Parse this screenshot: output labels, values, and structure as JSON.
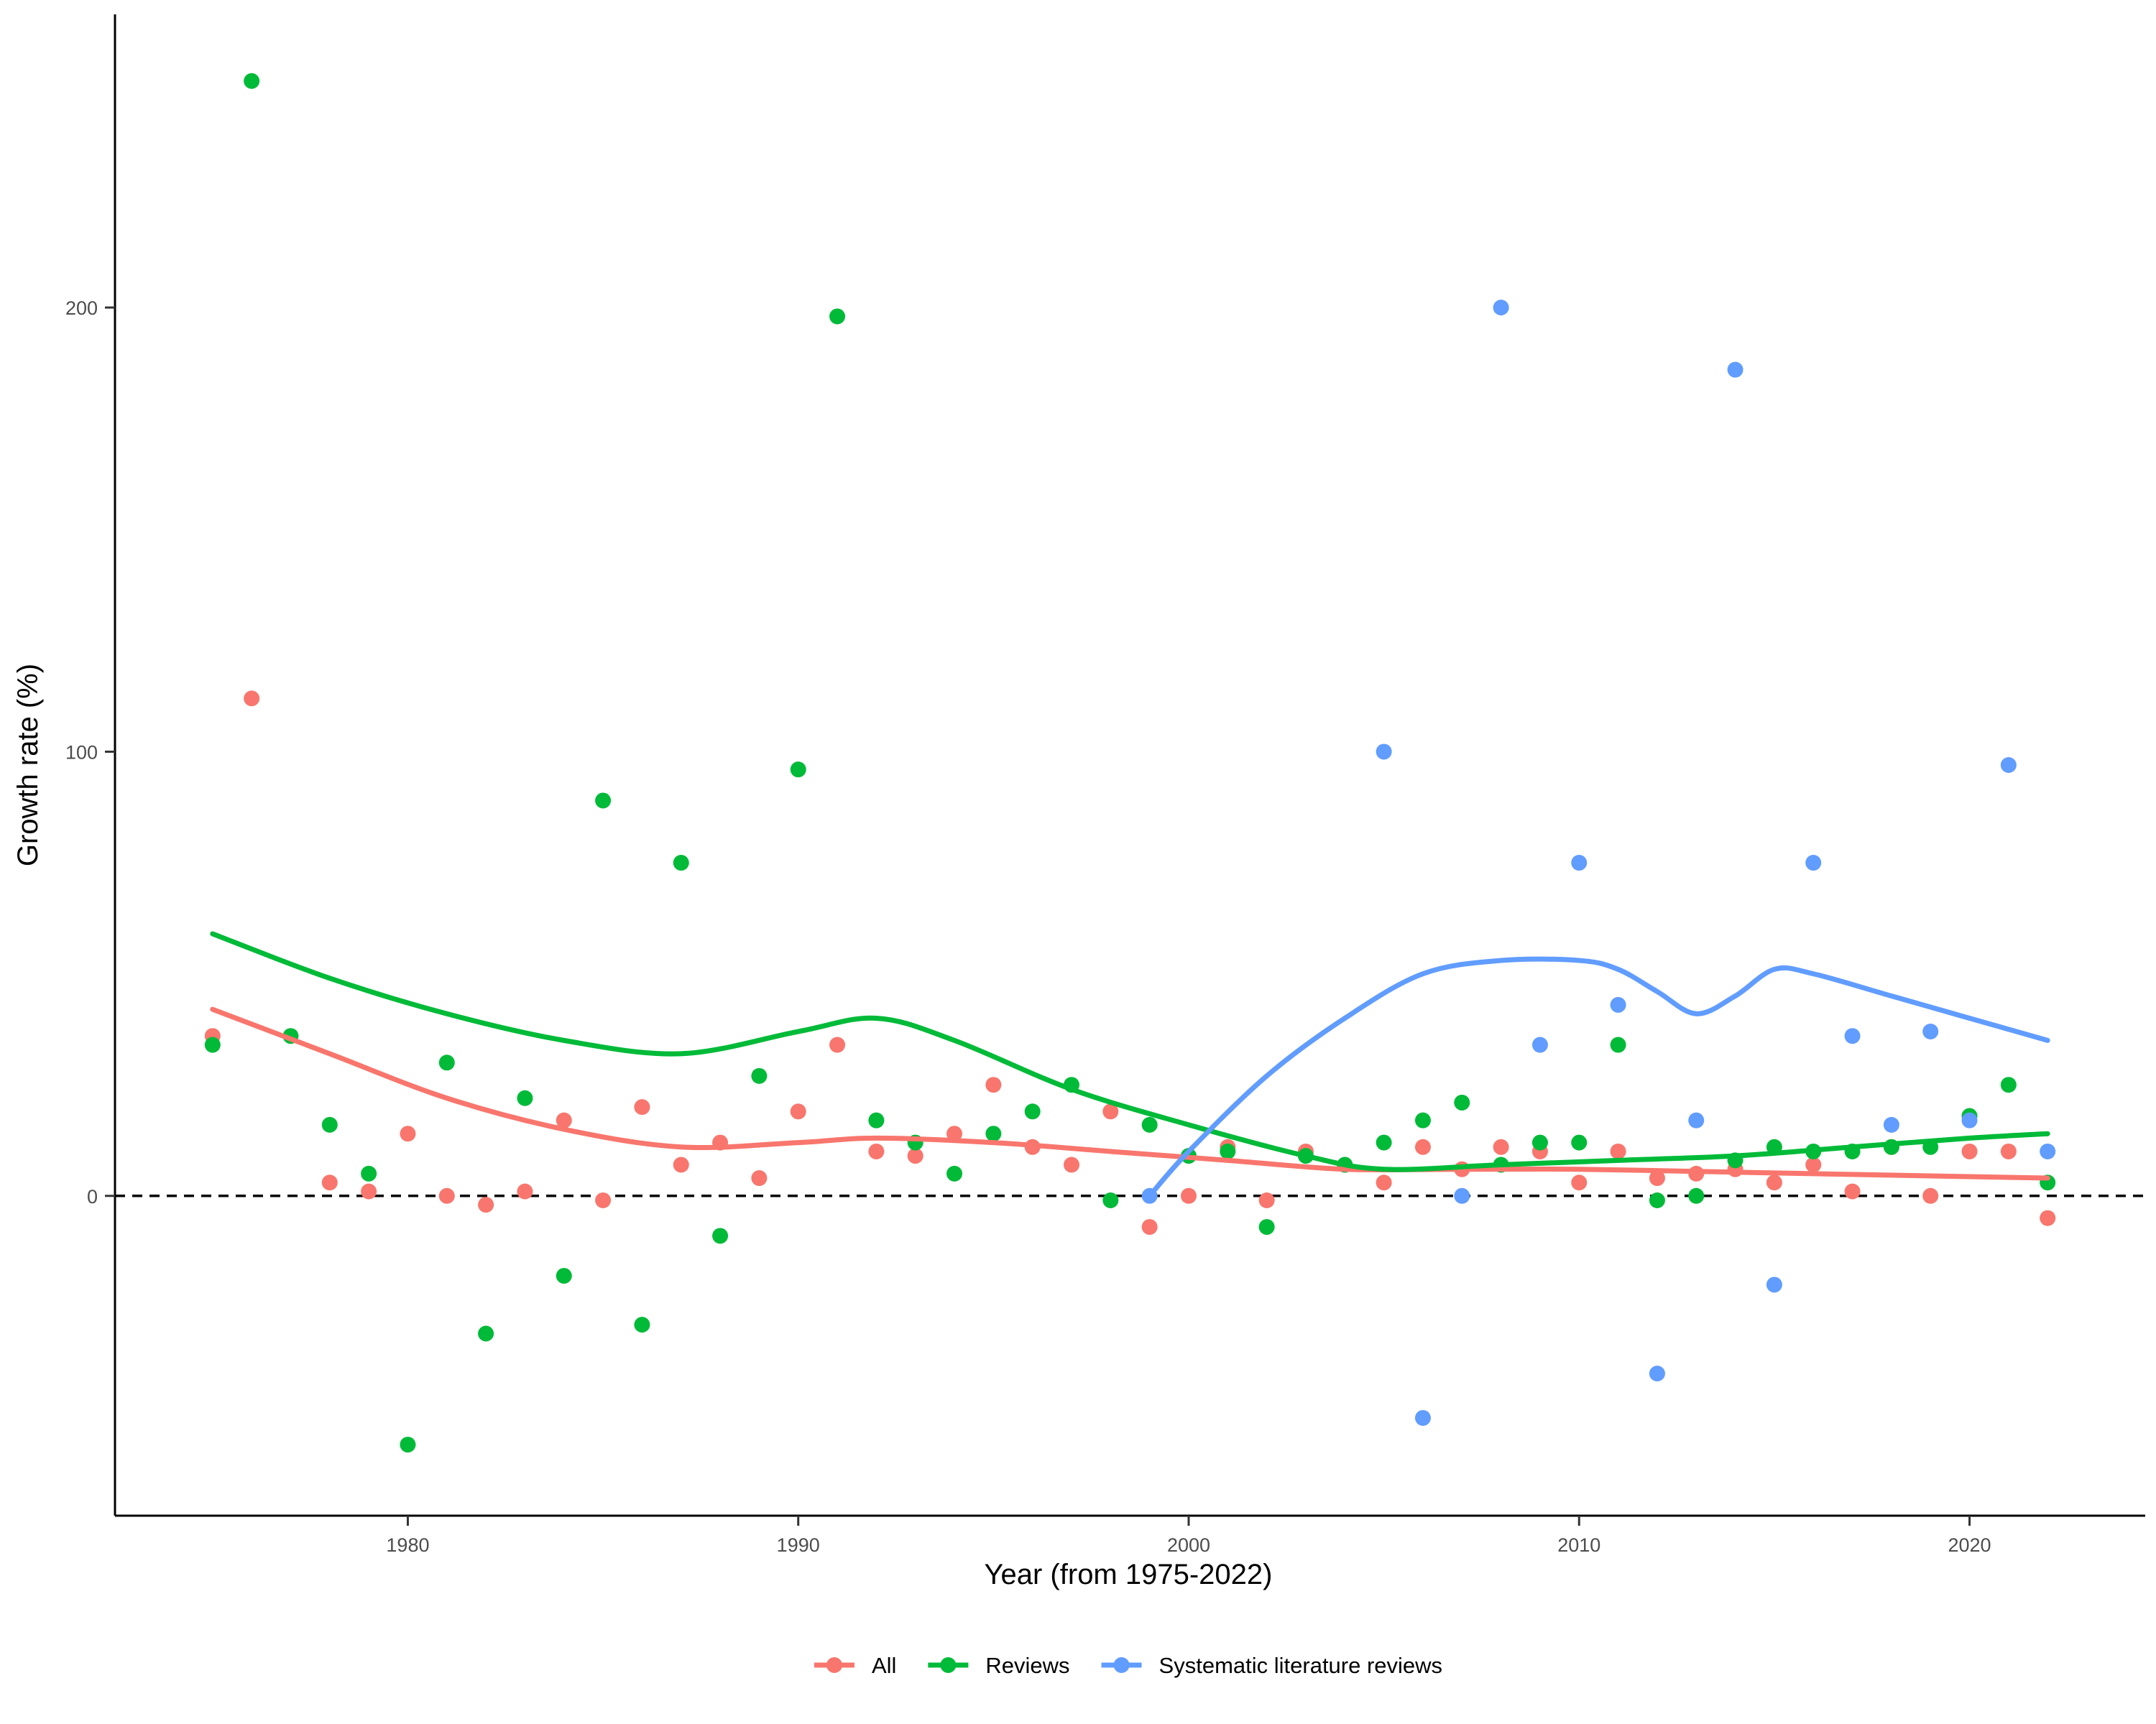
{
  "chart_data": {
    "type": "scatter",
    "title": "",
    "xlabel": "Year (from 1975-2022)",
    "ylabel": "Growth rate (%)",
    "xlim": [
      1972.5,
      2024.5
    ],
    "ylim": [
      -72,
      266
    ],
    "x_ticks": [
      1980,
      1990,
      2000,
      2010,
      2020
    ],
    "y_ticks": [
      0,
      100,
      200
    ],
    "reference_line": {
      "y": 0,
      "style": "dashed"
    },
    "grid": false,
    "legend_position": "bottom",
    "series": [
      {
        "name": "All",
        "color": "#F8766D",
        "points": [
          [
            1975,
            36
          ],
          [
            1976,
            112
          ],
          [
            1978,
            3
          ],
          [
            1979,
            1
          ],
          [
            1980,
            14
          ],
          [
            1981,
            0
          ],
          [
            1982,
            -2
          ],
          [
            1983,
            1
          ],
          [
            1984,
            17
          ],
          [
            1985,
            -1
          ],
          [
            1986,
            20
          ],
          [
            1987,
            7
          ],
          [
            1988,
            12
          ],
          [
            1989,
            4
          ],
          [
            1990,
            19
          ],
          [
            1991,
            34
          ],
          [
            1992,
            10
          ],
          [
            1993,
            9
          ],
          [
            1994,
            14
          ],
          [
            1995,
            25
          ],
          [
            1996,
            11
          ],
          [
            1997,
            7
          ],
          [
            1998,
            19
          ],
          [
            1999,
            -7
          ],
          [
            2000,
            0
          ],
          [
            2001,
            11
          ],
          [
            2002,
            -1
          ],
          [
            2003,
            10
          ],
          [
            2004,
            7
          ],
          [
            2005,
            3
          ],
          [
            2006,
            11
          ],
          [
            2007,
            6
          ],
          [
            2008,
            11
          ],
          [
            2009,
            10
          ],
          [
            2010,
            3
          ],
          [
            2011,
            10
          ],
          [
            2012,
            4
          ],
          [
            2013,
            5
          ],
          [
            2014,
            6
          ],
          [
            2015,
            3
          ],
          [
            2016,
            7
          ],
          [
            2017,
            1
          ],
          [
            2018,
            11
          ],
          [
            2019,
            0
          ],
          [
            2020,
            10
          ],
          [
            2021,
            10
          ],
          [
            2022,
            -5
          ]
        ],
        "trend": [
          [
            1975,
            42
          ],
          [
            1978,
            32
          ],
          [
            1981,
            22
          ],
          [
            1984,
            15
          ],
          [
            1987,
            11
          ],
          [
            1990,
            12
          ],
          [
            1992,
            13
          ],
          [
            1995,
            12
          ],
          [
            1998,
            10
          ],
          [
            2001,
            8
          ],
          [
            2004,
            6
          ],
          [
            2007,
            6
          ],
          [
            2010,
            6
          ],
          [
            2013,
            5.5
          ],
          [
            2016,
            5
          ],
          [
            2019,
            4.5
          ],
          [
            2022,
            4
          ]
        ]
      },
      {
        "name": "Reviews",
        "color": "#00BA38",
        "points": [
          [
            1975,
            34
          ],
          [
            1976,
            251
          ],
          [
            1977,
            36
          ],
          [
            1978,
            16
          ],
          [
            1979,
            5
          ],
          [
            1980,
            -56
          ],
          [
            1981,
            30
          ],
          [
            1982,
            -31
          ],
          [
            1983,
            22
          ],
          [
            1984,
            -18
          ],
          [
            1985,
            89
          ],
          [
            1986,
            -29
          ],
          [
            1987,
            75
          ],
          [
            1988,
            -9
          ],
          [
            1989,
            27
          ],
          [
            1990,
            96
          ],
          [
            1991,
            198
          ],
          [
            1992,
            17
          ],
          [
            1993,
            12
          ],
          [
            1994,
            5
          ],
          [
            1995,
            14
          ],
          [
            1996,
            19
          ],
          [
            1997,
            25
          ],
          [
            1998,
            -1
          ],
          [
            1999,
            16
          ],
          [
            2000,
            9
          ],
          [
            2001,
            10
          ],
          [
            2002,
            -7
          ],
          [
            2003,
            9
          ],
          [
            2004,
            7
          ],
          [
            2005,
            12
          ],
          [
            2006,
            17
          ],
          [
            2007,
            21
          ],
          [
            2008,
            7
          ],
          [
            2009,
            12
          ],
          [
            2010,
            12
          ],
          [
            2011,
            34
          ],
          [
            2012,
            -1
          ],
          [
            2013,
            0
          ],
          [
            2014,
            8
          ],
          [
            2015,
            11
          ],
          [
            2016,
            10
          ],
          [
            2017,
            10
          ],
          [
            2018,
            11
          ],
          [
            2019,
            11
          ],
          [
            2020,
            18
          ],
          [
            2021,
            25
          ],
          [
            2022,
            3
          ]
        ],
        "trend": [
          [
            1975,
            59
          ],
          [
            1978,
            49
          ],
          [
            1981,
            41
          ],
          [
            1984,
            35
          ],
          [
            1987,
            32
          ],
          [
            1990,
            37
          ],
          [
            1992,
            40
          ],
          [
            1994,
            35
          ],
          [
            1997,
            24
          ],
          [
            2000,
            16
          ],
          [
            2003,
            9
          ],
          [
            2005,
            6
          ],
          [
            2008,
            7
          ],
          [
            2011,
            8
          ],
          [
            2014,
            9
          ],
          [
            2017,
            11
          ],
          [
            2020,
            13
          ],
          [
            2022,
            14
          ]
        ]
      },
      {
        "name": "Systematic literature reviews",
        "color": "#619CFF",
        "points": [
          [
            1999,
            0
          ],
          [
            2005,
            100
          ],
          [
            2006,
            -50
          ],
          [
            2007,
            0
          ],
          [
            2008,
            200
          ],
          [
            2009,
            34
          ],
          [
            2010,
            75
          ],
          [
            2011,
            43
          ],
          [
            2012,
            -40
          ],
          [
            2013,
            17
          ],
          [
            2014,
            186
          ],
          [
            2015,
            -20
          ],
          [
            2016,
            75
          ],
          [
            2017,
            36
          ],
          [
            2018,
            16
          ],
          [
            2019,
            37
          ],
          [
            2020,
            17
          ],
          [
            2021,
            97
          ],
          [
            2022,
            10
          ]
        ],
        "trend": [
          [
            1999,
            0
          ],
          [
            2000,
            10
          ],
          [
            2002,
            27
          ],
          [
            2004,
            40
          ],
          [
            2006,
            50
          ],
          [
            2008,
            53
          ],
          [
            2010,
            53
          ],
          [
            2011,
            51
          ],
          [
            2012,
            46
          ],
          [
            2013,
            41
          ],
          [
            2014,
            45
          ],
          [
            2015,
            51
          ],
          [
            2016,
            50
          ],
          [
            2018,
            45
          ],
          [
            2020,
            40
          ],
          [
            2022,
            35
          ]
        ]
      }
    ]
  }
}
